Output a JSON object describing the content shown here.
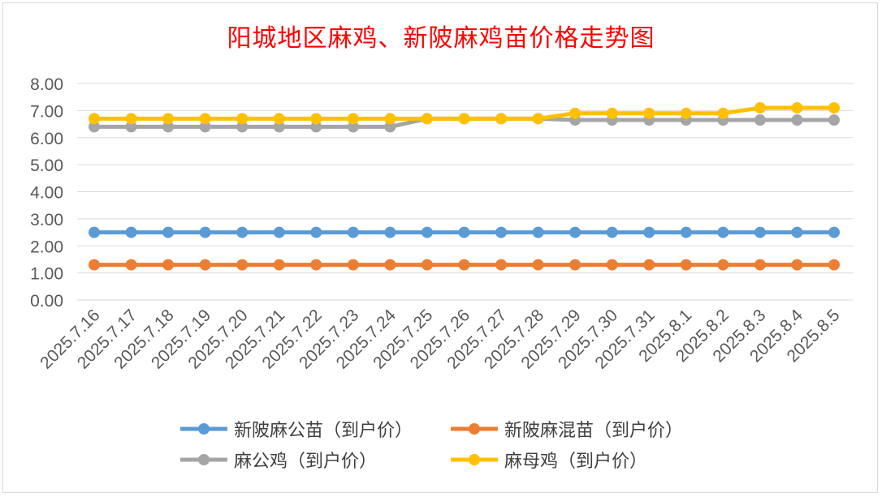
{
  "chart_data": {
    "type": "line",
    "title": "阳城地区麻鸡、新陂麻鸡苗价格走势图",
    "categories": [
      "2025.7.16",
      "2025.7.17",
      "2025.7.18",
      "2025.7.19",
      "2025.7.20",
      "2025.7.21",
      "2025.7.22",
      "2025.7.23",
      "2025.7.24",
      "2025.7.25",
      "2025.7.26",
      "2025.7.27",
      "2025.7.28",
      "2025.7.29",
      "2025.7.30",
      "2025.7.31",
      "2025.8.1",
      "2025.8.2",
      "2025.8.3",
      "2025.8.4",
      "2025.8.5"
    ],
    "ylim": [
      0,
      8
    ],
    "yticks": [
      "0.00",
      "1.00",
      "2.00",
      "3.00",
      "4.00",
      "5.00",
      "6.00",
      "7.00",
      "8.00"
    ],
    "grid": true,
    "legend_position": "bottom",
    "series": [
      {
        "name": "新陂麻公苗（到户价）",
        "color": "#5b9bd5",
        "values": [
          2.5,
          2.5,
          2.5,
          2.5,
          2.5,
          2.5,
          2.5,
          2.5,
          2.5,
          2.5,
          2.5,
          2.5,
          2.5,
          2.5,
          2.5,
          2.5,
          2.5,
          2.5,
          2.5,
          2.5,
          2.5
        ]
      },
      {
        "name": "新陂麻混苗（到户价）",
        "color": "#ed7d31",
        "values": [
          1.3,
          1.3,
          1.3,
          1.3,
          1.3,
          1.3,
          1.3,
          1.3,
          1.3,
          1.3,
          1.3,
          1.3,
          1.3,
          1.3,
          1.3,
          1.3,
          1.3,
          1.3,
          1.3,
          1.3,
          1.3
        ]
      },
      {
        "name": "麻公鸡（到户价）",
        "color": "#a5a5a5",
        "values": [
          6.4,
          6.4,
          6.4,
          6.4,
          6.4,
          6.4,
          6.4,
          6.4,
          6.4,
          6.7,
          6.7,
          6.7,
          6.7,
          6.65,
          6.65,
          6.65,
          6.65,
          6.65,
          6.65,
          6.65,
          6.65
        ]
      },
      {
        "name": "麻母鸡（到户价）",
        "color": "#ffc000",
        "values": [
          6.7,
          6.7,
          6.7,
          6.7,
          6.7,
          6.7,
          6.7,
          6.7,
          6.7,
          6.7,
          6.7,
          6.7,
          6.7,
          6.9,
          6.9,
          6.9,
          6.9,
          6.9,
          7.1,
          7.1,
          7.1
        ]
      }
    ]
  }
}
